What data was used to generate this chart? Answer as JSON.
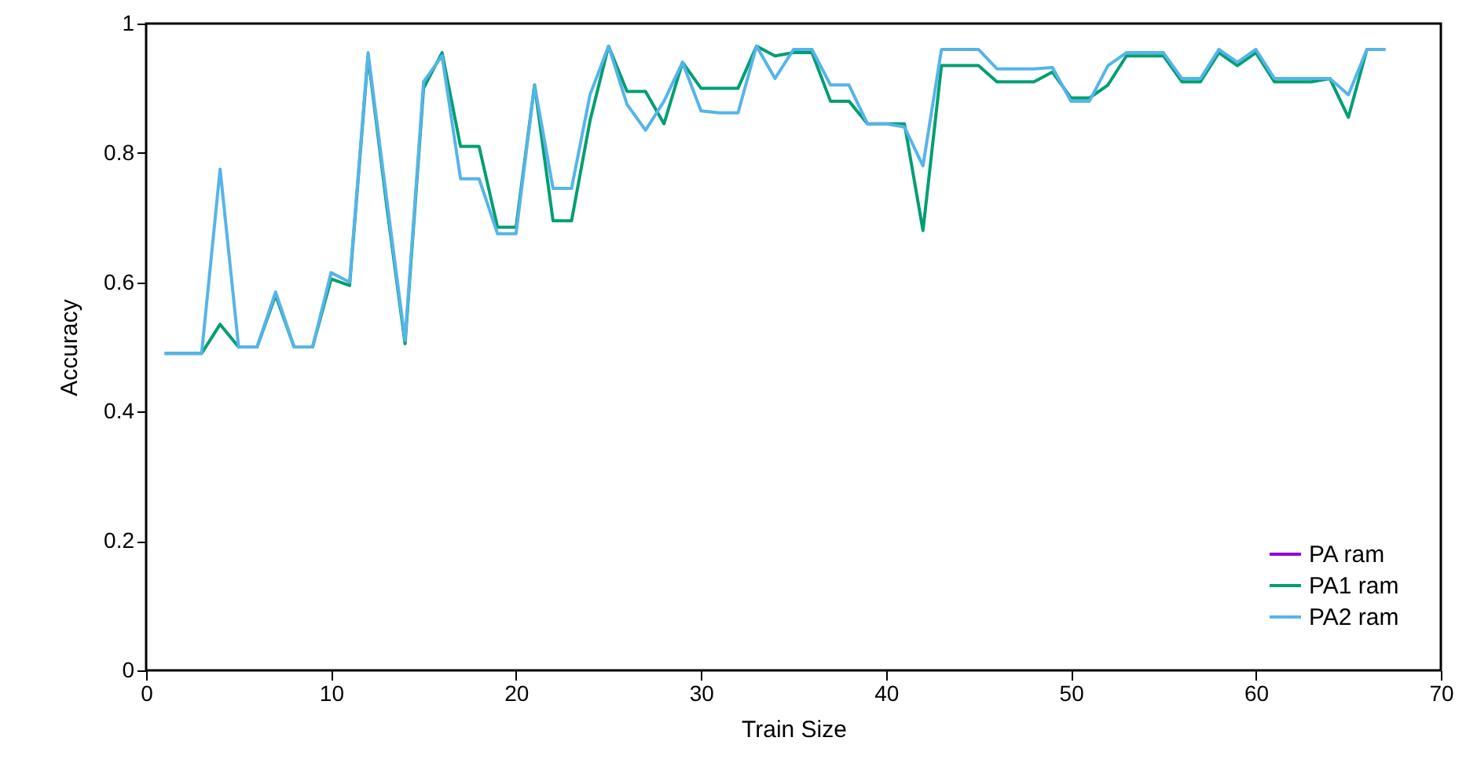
{
  "chart_data": {
    "type": "line",
    "xlabel": "Train Size",
    "ylabel": "Accuracy",
    "x": [
      1,
      2,
      3,
      4,
      5,
      6,
      7,
      8,
      9,
      10,
      11,
      12,
      13,
      14,
      15,
      16,
      17,
      18,
      19,
      20,
      21,
      22,
      23,
      24,
      25,
      26,
      27,
      28,
      29,
      30,
      31,
      32,
      33,
      34,
      35,
      36,
      37,
      38,
      39,
      40,
      41,
      42,
      43,
      44,
      45,
      46,
      47,
      48,
      49,
      50,
      51,
      52,
      53,
      54,
      55,
      56,
      57,
      58,
      59,
      60,
      61,
      62,
      63,
      64,
      65,
      66,
      67
    ],
    "series": [
      {
        "name": "PA ram",
        "color": "#9400d3",
        "values": [
          null,
          null,
          null,
          null,
          null,
          null,
          null,
          null,
          null,
          null,
          null,
          null,
          null,
          null,
          null,
          null,
          null,
          null,
          null,
          null,
          null,
          null,
          null,
          null,
          null,
          null,
          null,
          null,
          null,
          null,
          null,
          null,
          null,
          null,
          null,
          null,
          null,
          null,
          null,
          null,
          null,
          null,
          null,
          null,
          null,
          null,
          null,
          null,
          null,
          null,
          null,
          null,
          null,
          null,
          null,
          null,
          null,
          null,
          null,
          null,
          null,
          null,
          null,
          null,
          null,
          null,
          null
        ]
      },
      {
        "name": "PA1 ram",
        "color": "#009e73",
        "values": [
          0.49,
          0.49,
          0.49,
          0.535,
          0.5,
          0.5,
          0.58,
          0.5,
          0.5,
          0.605,
          0.595,
          0.95,
          0.72,
          0.505,
          0.9,
          0.955,
          0.81,
          0.81,
          0.685,
          0.685,
          0.905,
          0.695,
          0.695,
          0.85,
          0.965,
          0.895,
          0.895,
          0.845,
          0.94,
          0.9,
          0.9,
          0.9,
          0.965,
          0.95,
          0.955,
          0.955,
          0.88,
          0.88,
          0.845,
          0.845,
          0.845,
          0.68,
          0.935,
          0.935,
          0.935,
          0.91,
          0.91,
          0.91,
          0.925,
          0.885,
          0.885,
          0.905,
          0.95,
          0.95,
          0.95,
          0.91,
          0.91,
          0.955,
          0.935,
          0.955,
          0.91,
          0.91,
          0.91,
          0.915,
          0.855,
          0.96,
          0.96
        ]
      },
      {
        "name": "PA2 ram",
        "color": "#56b4e9",
        "values": [
          0.49,
          0.49,
          0.49,
          0.775,
          0.5,
          0.5,
          0.585,
          0.5,
          0.5,
          0.615,
          0.6,
          0.955,
          0.73,
          0.51,
          0.91,
          0.95,
          0.76,
          0.76,
          0.675,
          0.675,
          0.905,
          0.745,
          0.745,
          0.89,
          0.965,
          0.875,
          0.835,
          0.88,
          0.94,
          0.865,
          0.862,
          0.862,
          0.965,
          0.915,
          0.96,
          0.96,
          0.905,
          0.905,
          0.845,
          0.845,
          0.84,
          0.78,
          0.96,
          0.96,
          0.96,
          0.93,
          0.93,
          0.93,
          0.932,
          0.88,
          0.88,
          0.935,
          0.955,
          0.955,
          0.955,
          0.915,
          0.915,
          0.96,
          0.94,
          0.96,
          0.915,
          0.915,
          0.915,
          0.915,
          0.89,
          0.96,
          0.96
        ]
      }
    ],
    "xlim": [
      0,
      70
    ],
    "xticks": [
      0,
      10,
      20,
      30,
      40,
      50,
      60,
      70
    ],
    "ylim": [
      0,
      1
    ],
    "yticks": [
      0,
      0.2,
      0.4,
      0.6,
      0.8,
      1
    ],
    "legend": "bottom right",
    "grid": false,
    "marker": "none",
    "line_style": "solid"
  }
}
